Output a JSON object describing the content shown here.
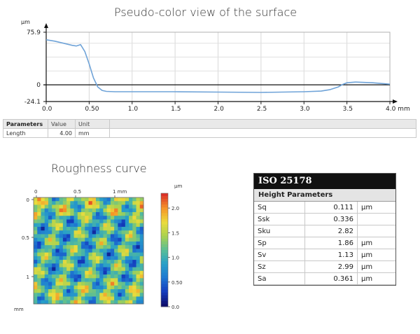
{
  "chart_data": [
    {
      "type": "line",
      "title": "Pseudo-color view of the surface",
      "yunit": "µm",
      "xunit": "mm",
      "xlim": [
        0,
        4.0
      ],
      "ylim": [
        -24.1,
        75.9
      ],
      "xticks": [
        "0.0",
        "0.50",
        "1.0",
        "1.5",
        "2.0",
        "2.5",
        "3.0",
        "3.5",
        "4.0"
      ],
      "yticks": [
        "75.9",
        "0",
        "-24.1"
      ],
      "x": [
        0.0,
        0.1,
        0.2,
        0.3,
        0.35,
        0.4,
        0.45,
        0.5,
        0.55,
        0.6,
        0.65,
        0.7,
        0.8,
        1.0,
        1.5,
        2.0,
        2.5,
        3.0,
        3.2,
        3.3,
        3.4,
        3.45,
        3.5,
        3.6,
        3.7,
        3.8,
        3.9,
        4.0
      ],
      "y": [
        65,
        63,
        60,
        57,
        56,
        58,
        48,
        30,
        10,
        -3,
        -8,
        -9.5,
        -10,
        -10,
        -10,
        -10.5,
        -11,
        -10,
        -9,
        -7,
        -3,
        0.5,
        3,
        4,
        3.5,
        3,
        2,
        1
      ],
      "grid": true
    },
    {
      "type": "heatmap",
      "title": "Roughness curve",
      "xunit": "mm",
      "yunit": "mm",
      "xticks": [
        "0",
        "0.5",
        "1 mm"
      ],
      "yticks": [
        "0",
        "0.5",
        "1"
      ],
      "colorbar_unit": "µm",
      "colorbar_ticks": [
        "2.0",
        "1.5",
        "1.0",
        "0.50",
        "0.0"
      ],
      "colorbar_range": [
        0.0,
        2.3
      ]
    }
  ],
  "params": {
    "headers": [
      "Parameters",
      "Value",
      "Unit"
    ],
    "rows": [
      {
        "name": "Length",
        "value": "4.00",
        "unit": "mm"
      }
    ]
  },
  "iso": {
    "title": "ISO 25178",
    "subtitle": "Height Parameters",
    "rows": [
      {
        "name": "Sq",
        "value": "0.111",
        "unit": "µm"
      },
      {
        "name": "Ssk",
        "value": "0.336",
        "unit": ""
      },
      {
        "name": "Sku",
        "value": "2.82",
        "unit": ""
      },
      {
        "name": "Sp",
        "value": "1.86",
        "unit": "µm"
      },
      {
        "name": "Sv",
        "value": "1.13",
        "unit": "µm"
      },
      {
        "name": "Sz",
        "value": "2.99",
        "unit": "µm"
      },
      {
        "name": "Sa",
        "value": "0.361",
        "unit": "µm"
      }
    ]
  }
}
